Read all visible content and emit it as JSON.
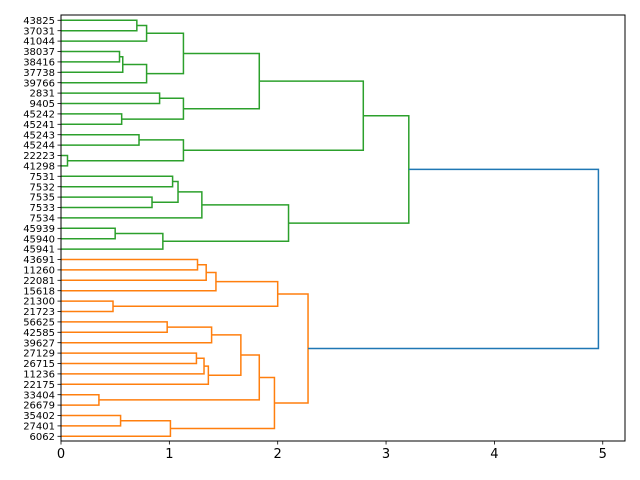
{
  "chart_data": {
    "type": "dendrogram",
    "orientation": "right",
    "title": "",
    "xlabel": "",
    "ylabel": "",
    "xlim": [
      0,
      5.2
    ],
    "xticks": [
      0,
      1,
      2,
      3,
      4,
      5
    ],
    "xtick_labels": [
      "0",
      "1",
      "2",
      "3",
      "4",
      "5"
    ],
    "colors": {
      "green": "#2ca02c",
      "orange": "#ff7f0e",
      "root": "#1f77b4"
    },
    "leaves": [
      "43825",
      "37031",
      "41044",
      "38037",
      "38416",
      "37738",
      "39766",
      "2831",
      "9405",
      "45242",
      "45241",
      "45243",
      "45244",
      "22223",
      "41298",
      "7531",
      "7532",
      "7535",
      "7533",
      "7534",
      "45939",
      "45940",
      "45941",
      "43691",
      "11260",
      "22081",
      "15618",
      "21300",
      "21723",
      "56625",
      "42585",
      "39627",
      "27129",
      "26715",
      "11236",
      "22175",
      "33404",
      "26679",
      "35402",
      "27401",
      "6062"
    ],
    "tree": {
      "h": 4.96,
      "color": "root",
      "c": [
        {
          "h": 3.21,
          "color": "green",
          "c": [
            {
              "h": 2.79,
              "c": [
                {
                  "h": 1.83,
                  "c": [
                    {
                      "h": 1.13,
                      "c": [
                        {
                          "h": 0.79,
                          "c": [
                            {
                              "h": 0.7,
                              "c": [
                                0,
                                1
                              ]
                            },
                            2
                          ]
                        },
                        {
                          "h": 0.79,
                          "c": [
                            {
                              "h": 0.57,
                              "c": [
                                {
                                  "h": 0.54,
                                  "c": [
                                    3,
                                    4
                                  ]
                                },
                                5
                              ]
                            },
                            6
                          ]
                        }
                      ]
                    },
                    {
                      "h": 1.13,
                      "c": [
                        {
                          "h": 0.91,
                          "c": [
                            7,
                            8
                          ]
                        },
                        {
                          "h": 0.56,
                          "c": [
                            9,
                            10
                          ]
                        }
                      ]
                    }
                  ]
                },
                {
                  "h": 1.13,
                  "c": [
                    {
                      "h": 0.72,
                      "c": [
                        11,
                        12
                      ]
                    },
                    {
                      "h": 0.06,
                      "c": [
                        13,
                        14
                      ]
                    }
                  ]
                }
              ]
            },
            {
              "h": 2.1,
              "c": [
                {
                  "h": 1.3,
                  "c": [
                    {
                      "h": 1.08,
                      "c": [
                        {
                          "h": 1.03,
                          "c": [
                            15,
                            16
                          ]
                        },
                        {
                          "h": 0.84,
                          "c": [
                            17,
                            18
                          ]
                        }
                      ]
                    },
                    19
                  ]
                },
                {
                  "h": 0.94,
                  "c": [
                    {
                      "h": 0.5,
                      "c": [
                        20,
                        21
                      ]
                    },
                    22
                  ]
                }
              ]
            }
          ]
        },
        {
          "h": 2.28,
          "color": "orange",
          "c": [
            {
              "h": 2.0,
              "c": [
                {
                  "h": 1.43,
                  "c": [
                    {
                      "h": 1.34,
                      "c": [
                        {
                          "h": 1.26,
                          "c": [
                            23,
                            24
                          ]
                        },
                        25
                      ]
                    },
                    26
                  ]
                },
                {
                  "h": 0.48,
                  "c": [
                    27,
                    28
                  ]
                }
              ]
            },
            {
              "h": 1.97,
              "c": [
                {
                  "h": 1.83,
                  "c": [
                    {
                      "h": 1.66,
                      "c": [
                        {
                          "h": 1.39,
                          "c": [
                            {
                              "h": 0.98,
                              "c": [
                                29,
                                30
                              ]
                            },
                            31
                          ]
                        },
                        {
                          "h": 1.36,
                          "c": [
                            {
                              "h": 1.32,
                              "c": [
                                {
                                  "h": 1.25,
                                  "c": [
                                    32,
                                    33
                                  ]
                                },
                                34
                              ]
                            },
                            35
                          ]
                        }
                      ]
                    },
                    {
                      "h": 0.35,
                      "c": [
                        36,
                        37
                      ]
                    }
                  ]
                },
                {
                  "h": 1.01,
                  "c": [
                    {
                      "h": 0.55,
                      "c": [
                        38,
                        39
                      ]
                    },
                    40
                  ]
                }
              ]
            }
          ]
        }
      ]
    }
  }
}
